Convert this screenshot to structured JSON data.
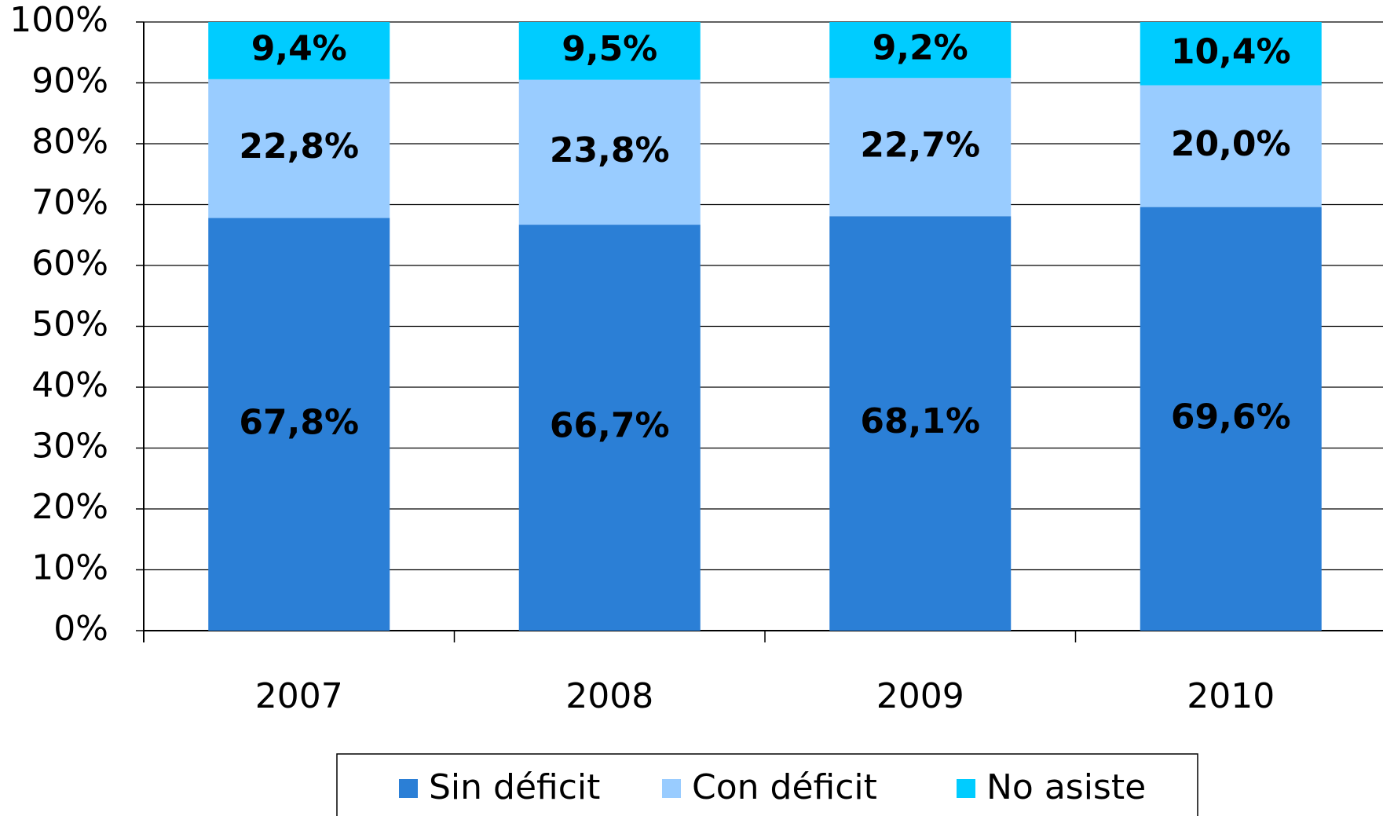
{
  "chart_data": {
    "type": "stacked_bar",
    "categories": [
      "2007",
      "2008",
      "2009",
      "2010"
    ],
    "series": [
      {
        "name": "Sin déficit",
        "color": "#2b7fd6",
        "values": [
          67.8,
          66.7,
          68.1,
          69.6
        ],
        "value_labels": [
          "67,8%",
          "66,7%",
          "68,1%",
          "69,6%"
        ]
      },
      {
        "name": "Con déficit",
        "color": "#99ccff",
        "values": [
          22.8,
          23.8,
          22.7,
          20.0
        ],
        "value_labels": [
          "22,8%",
          "23,8%",
          "22,7%",
          "20,0%"
        ]
      },
      {
        "name": "No asiste",
        "color": "#00ccff",
        "values": [
          9.4,
          9.5,
          9.2,
          10.4
        ],
        "value_labels": [
          "9,4%",
          "9,5%",
          "9,2%",
          "10,4%"
        ]
      }
    ],
    "ylim": [
      0,
      100
    ],
    "yticks": [
      {
        "value": 0,
        "label": "0%"
      },
      {
        "value": 10,
        "label": "10%"
      },
      {
        "value": 20,
        "label": "20%"
      },
      {
        "value": 30,
        "label": "30%"
      },
      {
        "value": 40,
        "label": "40%"
      },
      {
        "value": 50,
        "label": "50%"
      },
      {
        "value": 60,
        "label": "60%"
      },
      {
        "value": 70,
        "label": "70%"
      },
      {
        "value": 80,
        "label": "80%"
      },
      {
        "value": 90,
        "label": "90%"
      },
      {
        "value": 100,
        "label": "100%"
      }
    ],
    "grid": true,
    "legend": "bottom"
  }
}
